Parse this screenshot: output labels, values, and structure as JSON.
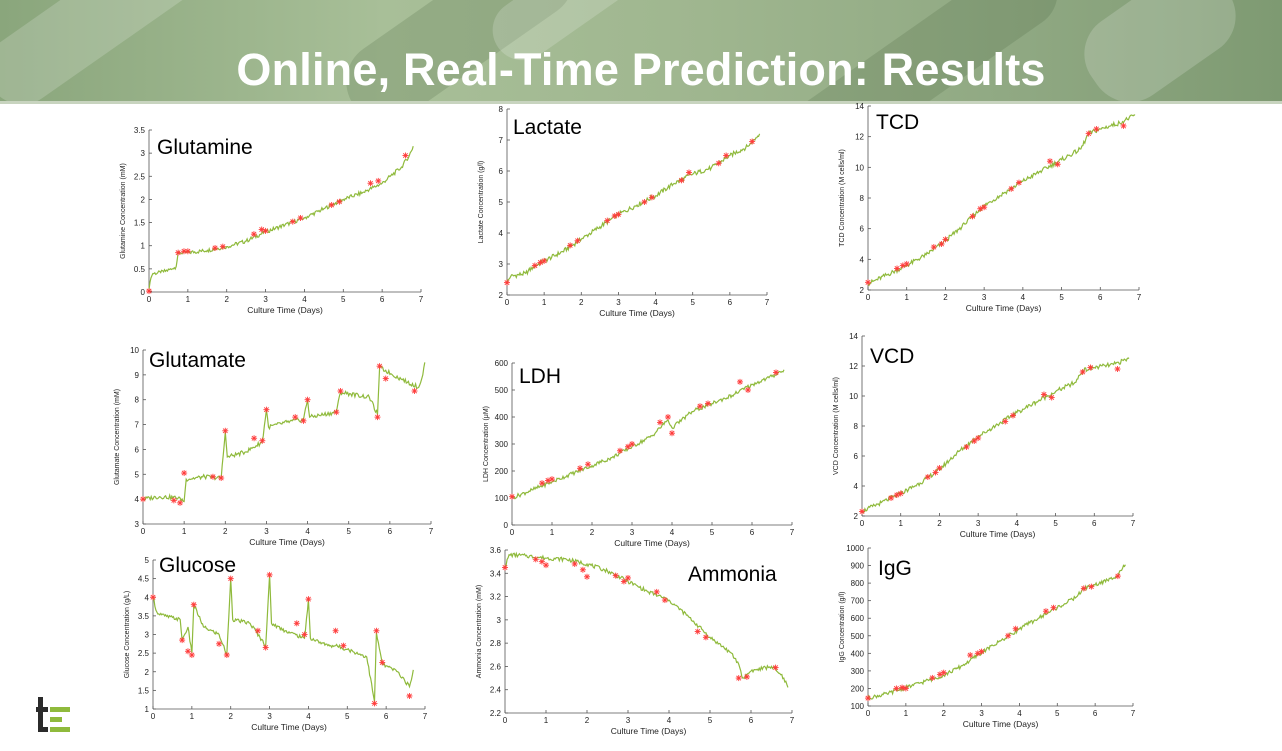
{
  "slide": {
    "title": "Online, Real-Time Prediction: Results"
  },
  "colors": {
    "line": "#8fba3c",
    "marker": "#ff3b3b",
    "title_text": "#ffffff"
  },
  "logo_icon": "te-logo-icon",
  "chart_data": [
    {
      "type": "line",
      "panel_label": "Glutamine",
      "xlabel": "Culture Time (Days)",
      "ylabel": "Glutamine Concentration (mM)",
      "xlim": [
        0,
        7
      ],
      "ylim": [
        0,
        3.5
      ],
      "xticks": [
        "0",
        "1",
        "2",
        "3",
        "4",
        "5",
        "6",
        "7"
      ],
      "yticks": [
        "0",
        "0.5",
        "1",
        "1.5",
        "2",
        "2.5",
        "3",
        "3.5"
      ],
      "curve_x": [
        0,
        0.05,
        0.1,
        0.3,
        0.6,
        0.7,
        0.75,
        1.0,
        1.5,
        2.0,
        2.5,
        3.0,
        3.5,
        4.0,
        4.5,
        5.0,
        5.5,
        6.0,
        6.5,
        6.7,
        6.8
      ],
      "curve_y": [
        0.05,
        0.3,
        0.4,
        0.42,
        0.5,
        0.55,
        0.85,
        0.85,
        0.9,
        0.98,
        1.1,
        1.3,
        1.45,
        1.6,
        1.8,
        2.0,
        2.15,
        2.35,
        2.7,
        2.95,
        3.15
      ],
      "measured_x": [
        0,
        0.75,
        0.9,
        1.0,
        1.7,
        1.9,
        2.7,
        2.9,
        3.0,
        3.7,
        3.9,
        4.7,
        4.9,
        5.7,
        5.9,
        6.6
      ],
      "measured_y": [
        0.02,
        0.85,
        0.88,
        0.88,
        0.95,
        0.98,
        1.25,
        1.35,
        1.32,
        1.52,
        1.6,
        1.88,
        1.95,
        2.35,
        2.4,
        2.95
      ]
    },
    {
      "type": "line",
      "panel_label": "Lactate",
      "xlabel": "Culture Time (Days)",
      "ylabel": "Lactate Concentration (g/l)",
      "xlim": [
        0,
        7
      ],
      "ylim": [
        2,
        8
      ],
      "xticks": [
        "0",
        "1",
        "2",
        "3",
        "4",
        "5",
        "6",
        "7"
      ],
      "yticks": [
        "2",
        "3",
        "4",
        "5",
        "6",
        "7",
        "8"
      ],
      "curve_x": [
        0,
        0.1,
        0.5,
        0.7,
        1.0,
        1.5,
        2.0,
        2.5,
        3.0,
        3.5,
        4.0,
        4.5,
        5.0,
        5.5,
        6.0,
        6.5,
        6.8
      ],
      "curve_y": [
        2.4,
        2.6,
        2.7,
        2.9,
        3.1,
        3.4,
        3.8,
        4.2,
        4.6,
        4.9,
        5.2,
        5.6,
        5.9,
        6.1,
        6.5,
        6.8,
        7.2
      ],
      "measured_x": [
        0,
        0.75,
        0.9,
        1.0,
        1.7,
        1.9,
        2.7,
        2.9,
        3.0,
        3.7,
        3.9,
        4.7,
        4.9,
        5.7,
        5.9,
        6.6
      ],
      "measured_y": [
        2.4,
        2.95,
        3.05,
        3.1,
        3.6,
        3.75,
        4.4,
        4.55,
        4.6,
        5.0,
        5.15,
        5.7,
        5.95,
        6.25,
        6.5,
        6.95
      ]
    },
    {
      "type": "line",
      "panel_label": "TCD",
      "xlabel": "Culture Time (Days)",
      "ylabel": "TCD Concentration (M cells/ml)",
      "xlim": [
        0,
        7
      ],
      "ylim": [
        2,
        14
      ],
      "xticks": [
        "0",
        "1",
        "2",
        "3",
        "4",
        "5",
        "6",
        "7"
      ],
      "yticks": [
        "2",
        "4",
        "6",
        "8",
        "10",
        "12",
        "14"
      ],
      "curve_x": [
        0,
        0.5,
        1.0,
        1.5,
        2.0,
        2.5,
        3.0,
        3.5,
        4.0,
        4.5,
        5.0,
        5.5,
        5.7,
        6.0,
        6.5,
        6.9
      ],
      "curve_y": [
        2.4,
        3.0,
        3.6,
        4.3,
        5.2,
        6.3,
        7.5,
        8.3,
        9.1,
        9.8,
        10.5,
        11.2,
        12.2,
        12.5,
        12.9,
        13.4
      ],
      "measured_x": [
        0,
        0.75,
        0.9,
        1.0,
        1.7,
        1.9,
        2.0,
        2.7,
        2.9,
        3.0,
        3.7,
        3.9,
        4.7,
        4.9,
        5.7,
        5.9,
        6.6
      ],
      "measured_y": [
        2.5,
        3.4,
        3.6,
        3.7,
        4.8,
        5.0,
        5.3,
        6.8,
        7.3,
        7.4,
        8.6,
        9.0,
        10.4,
        10.2,
        12.2,
        12.5,
        12.7
      ]
    },
    {
      "type": "line",
      "panel_label": "Glutamate",
      "xlabel": "Culture Time (Days)",
      "ylabel": "Glutamate Concentration (mM)",
      "xlim": [
        0,
        7
      ],
      "ylim": [
        3,
        10
      ],
      "xticks": [
        "0",
        "1",
        "2",
        "3",
        "4",
        "5",
        "6",
        "7"
      ],
      "yticks": [
        "3",
        "4",
        "5",
        "6",
        "7",
        "8",
        "9",
        "10"
      ],
      "curve_x": [
        0,
        0.4,
        0.9,
        1.0,
        1.05,
        1.5,
        1.9,
        2.0,
        2.05,
        2.5,
        2.9,
        3.0,
        3.05,
        3.5,
        3.9,
        4.0,
        4.05,
        4.7,
        4.8,
        5.5,
        5.7,
        5.75,
        6.3,
        6.7,
        6.8,
        6.85
      ],
      "curve_y": [
        4.0,
        4.1,
        4.05,
        3.9,
        4.8,
        4.9,
        4.85,
        6.7,
        5.7,
        5.9,
        6.3,
        7.6,
        6.9,
        7.1,
        7.2,
        8.0,
        7.3,
        7.5,
        8.3,
        8.1,
        7.4,
        9.3,
        8.8,
        8.5,
        9.0,
        9.5
      ],
      "measured_x": [
        0,
        0.75,
        0.9,
        1.0,
        1.7,
        1.9,
        2.0,
        2.7,
        2.9,
        3.0,
        3.7,
        3.9,
        4.0,
        4.7,
        4.8,
        5.7,
        5.75,
        5.9,
        6.6
      ],
      "measured_y": [
        4.0,
        3.95,
        3.85,
        5.05,
        4.9,
        4.85,
        6.75,
        6.45,
        6.35,
        7.6,
        7.3,
        7.15,
        8.0,
        7.5,
        8.35,
        7.3,
        9.35,
        8.85,
        8.35
      ]
    },
    {
      "type": "line",
      "panel_label": "LDH",
      "xlabel": "Culture Time (Days)",
      "ylabel": "LDH Concentration (μM)",
      "xlim": [
        0,
        7
      ],
      "ylim": [
        0,
        600
      ],
      "xticks": [
        "0",
        "1",
        "2",
        "3",
        "4",
        "5",
        "6",
        "7"
      ],
      "yticks": [
        "0",
        "100",
        "200",
        "300",
        "400",
        "500",
        "600"
      ],
      "curve_x": [
        0,
        0.5,
        1.0,
        1.5,
        2.0,
        2.5,
        3.0,
        3.5,
        3.9,
        4.0,
        4.5,
        5.0,
        5.5,
        6.0,
        6.5,
        6.8
      ],
      "curve_y": [
        100,
        130,
        160,
        190,
        220,
        250,
        290,
        330,
        390,
        360,
        420,
        450,
        480,
        520,
        550,
        575
      ],
      "measured_x": [
        0,
        0.75,
        0.9,
        1.0,
        1.7,
        1.9,
        2.7,
        2.9,
        3.0,
        3.7,
        3.9,
        4.0,
        4.7,
        4.9,
        5.7,
        5.9,
        6.6
      ],
      "measured_y": [
        105,
        155,
        165,
        170,
        210,
        225,
        275,
        290,
        300,
        380,
        400,
        340,
        440,
        450,
        530,
        500,
        565
      ]
    },
    {
      "type": "line",
      "panel_label": "VCD",
      "xlabel": "Culture Time (Days)",
      "ylabel": "VCD Concentration (M cells/ml)",
      "xlim": [
        0,
        7
      ],
      "ylim": [
        2,
        14
      ],
      "xticks": [
        "0",
        "1",
        "2",
        "3",
        "4",
        "5",
        "6",
        "7"
      ],
      "yticks": [
        "2",
        "4",
        "6",
        "8",
        "10",
        "12",
        "14"
      ],
      "curve_x": [
        0,
        0.5,
        1.0,
        1.5,
        2.0,
        2.5,
        3.0,
        3.5,
        4.0,
        4.5,
        5.0,
        5.5,
        5.7,
        6.0,
        6.5,
        6.9
      ],
      "curve_y": [
        2.3,
        2.9,
        3.5,
        4.2,
        5.1,
        6.3,
        7.3,
        8.1,
        8.9,
        9.6,
        10.3,
        10.9,
        11.7,
        11.9,
        12.1,
        12.5
      ],
      "measured_x": [
        0,
        0.75,
        0.9,
        1.0,
        1.7,
        1.9,
        2.0,
        2.7,
        2.9,
        3.0,
        3.7,
        3.9,
        4.7,
        4.9,
        5.7,
        5.9,
        6.6
      ],
      "measured_y": [
        2.3,
        3.2,
        3.4,
        3.5,
        4.6,
        4.9,
        5.2,
        6.6,
        7.0,
        7.2,
        8.3,
        8.7,
        10.1,
        9.9,
        11.6,
        11.9,
        11.8
      ]
    },
    {
      "type": "line",
      "panel_label": "Glucose",
      "xlabel": "Culture Time (Days)",
      "ylabel": "Glucose Concentration (g/L)",
      "xlim": [
        0,
        7
      ],
      "ylim": [
        1,
        5
      ],
      "xticks": [
        "0",
        "1",
        "2",
        "3",
        "4",
        "5",
        "6",
        "7"
      ],
      "yticks": [
        "1",
        "1.5",
        "2",
        "2.5",
        "3",
        "3.5",
        "4",
        "4.5",
        "5"
      ],
      "curve_x": [
        0,
        0.1,
        0.3,
        0.7,
        0.75,
        0.9,
        1.0,
        1.05,
        1.3,
        1.7,
        1.9,
        2.0,
        2.05,
        2.5,
        2.9,
        3.0,
        3.05,
        3.4,
        3.9,
        4.0,
        4.05,
        4.5,
        4.7,
        5.0,
        5.5,
        5.7,
        5.75,
        5.9,
        6.3,
        6.6,
        6.7
      ],
      "curve_y": [
        4.0,
        3.6,
        3.5,
        3.4,
        2.85,
        3.2,
        2.5,
        3.8,
        3.2,
        3.0,
        2.45,
        4.5,
        3.4,
        3.3,
        2.7,
        4.6,
        3.3,
        3.1,
        2.9,
        3.95,
        2.9,
        2.7,
        2.7,
        2.6,
        2.4,
        1.2,
        3.05,
        2.2,
        2.0,
        1.6,
        2.05
      ],
      "measured_x": [
        0,
        0.75,
        0.9,
        1.0,
        1.05,
        1.7,
        1.9,
        2.0,
        2.7,
        2.9,
        3.0,
        3.7,
        3.9,
        4.0,
        4.7,
        4.9,
        5.7,
        5.75,
        5.9,
        6.6
      ],
      "measured_y": [
        4.0,
        2.85,
        2.55,
        2.45,
        3.8,
        2.75,
        2.45,
        4.5,
        3.1,
        2.65,
        4.6,
        3.3,
        3.0,
        3.95,
        3.1,
        2.7,
        1.15,
        3.1,
        2.25,
        1.35
      ]
    },
    {
      "type": "line",
      "panel_label": "Ammonia",
      "xlabel": "Culture Time (Days)",
      "ylabel": "Ammonia Concentration (mM)",
      "xlim": [
        0,
        7
      ],
      "ylim": [
        2.2,
        3.6
      ],
      "xticks": [
        "0",
        "1",
        "2",
        "3",
        "4",
        "5",
        "6",
        "7"
      ],
      "yticks": [
        "2.2",
        "2.4",
        "2.6",
        "2.8",
        "3",
        "3.2",
        "3.4",
        "3.6"
      ],
      "curve_x": [
        0,
        0.1,
        0.5,
        1.0,
        1.5,
        2.0,
        2.5,
        3.0,
        3.5,
        4.0,
        4.5,
        5.0,
        5.5,
        5.7,
        5.8,
        6.0,
        6.5,
        6.8,
        6.9
      ],
      "curve_y": [
        3.45,
        3.56,
        3.55,
        3.53,
        3.52,
        3.48,
        3.42,
        3.33,
        3.24,
        3.17,
        3.02,
        2.85,
        2.72,
        2.62,
        2.5,
        2.56,
        2.6,
        2.5,
        2.42
      ],
      "measured_x": [
        0,
        0.75,
        0.9,
        1.0,
        1.7,
        1.9,
        2.0,
        2.7,
        2.9,
        3.0,
        3.7,
        3.9,
        4.7,
        4.9,
        5.7,
        5.9,
        6.6
      ],
      "measured_y": [
        3.45,
        3.52,
        3.5,
        3.47,
        3.48,
        3.43,
        3.37,
        3.38,
        3.33,
        3.36,
        3.24,
        3.17,
        2.9,
        2.85,
        2.5,
        2.51,
        2.59
      ]
    },
    {
      "type": "line",
      "panel_label": "IgG",
      "xlabel": "Culture Time (Days)",
      "ylabel": "IgG Concentration (g/l)",
      "xlim": [
        0,
        7
      ],
      "ylim": [
        100,
        1000
      ],
      "xticks": [
        "0",
        "1",
        "2",
        "3",
        "4",
        "5",
        "6",
        "7"
      ],
      "yticks": [
        "100",
        "200",
        "300",
        "400",
        "500",
        "600",
        "700",
        "800",
        "900",
        "1000"
      ],
      "curve_x": [
        0,
        0.5,
        1.0,
        1.5,
        2.0,
        2.5,
        3.0,
        3.5,
        4.0,
        4.5,
        5.0,
        5.5,
        5.7,
        6.0,
        6.5,
        6.8
      ],
      "curve_y": [
        145,
        170,
        205,
        240,
        275,
        330,
        405,
        470,
        540,
        600,
        660,
        720,
        770,
        790,
        830,
        905
      ],
      "measured_x": [
        0,
        0.75,
        0.9,
        1.0,
        1.7,
        1.9,
        2.0,
        2.7,
        2.9,
        3.0,
        3.7,
        3.9,
        4.7,
        4.9,
        5.7,
        5.9,
        6.6
      ],
      "measured_y": [
        145,
        200,
        205,
        200,
        260,
        280,
        290,
        390,
        400,
        410,
        500,
        540,
        640,
        660,
        770,
        780,
        840
      ]
    }
  ]
}
